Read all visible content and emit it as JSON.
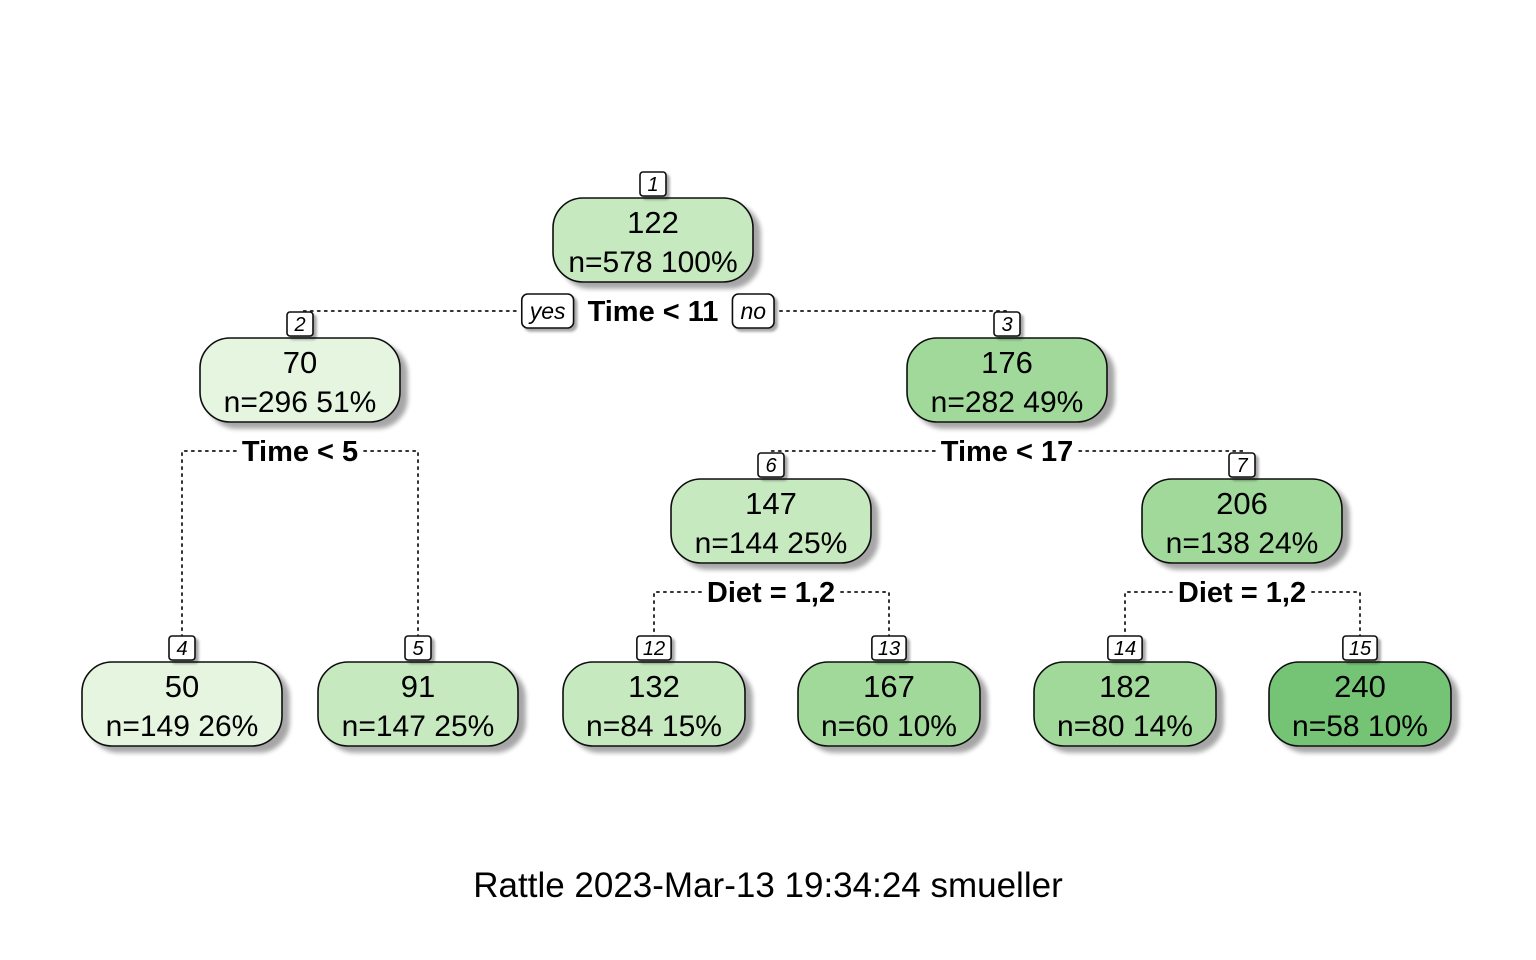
{
  "tree": {
    "nodes": [
      {
        "id": "1",
        "value": "122",
        "stats": "n=578  100%",
        "fill": "#c7e9c0"
      },
      {
        "id": "2",
        "value": "70",
        "stats": "n=296  51%",
        "fill": "#e5f5e0"
      },
      {
        "id": "3",
        "value": "176",
        "stats": "n=282  49%",
        "fill": "#a1d99b"
      },
      {
        "id": "4",
        "value": "50",
        "stats": "n=149  26%",
        "fill": "#e5f5e0"
      },
      {
        "id": "5",
        "value": "91",
        "stats": "n=147  25%",
        "fill": "#c7e9c0"
      },
      {
        "id": "6",
        "value": "147",
        "stats": "n=144  25%",
        "fill": "#c7e9c0"
      },
      {
        "id": "7",
        "value": "206",
        "stats": "n=138  24%",
        "fill": "#a1d99b"
      },
      {
        "id": "12",
        "value": "132",
        "stats": "n=84  15%",
        "fill": "#c7e9c0"
      },
      {
        "id": "13",
        "value": "167",
        "stats": "n=60  10%",
        "fill": "#a1d99b"
      },
      {
        "id": "14",
        "value": "182",
        "stats": "n=80  14%",
        "fill": "#a1d99b"
      },
      {
        "id": "15",
        "value": "240",
        "stats": "n=58  10%",
        "fill": "#74c476"
      }
    ],
    "splits": [
      {
        "parent": "1",
        "label": "Time < 11",
        "yes_label": "yes",
        "no_label": "no"
      },
      {
        "parent": "2",
        "label": "Time < 5"
      },
      {
        "parent": "3",
        "label": "Time < 17"
      },
      {
        "parent": "6",
        "label": "Diet = 1,2"
      },
      {
        "parent": "7",
        "label": "Diet = 1,2"
      }
    ]
  },
  "footer": {
    "text": "Rattle 2023-Mar-13 19:34:24 smueller"
  }
}
